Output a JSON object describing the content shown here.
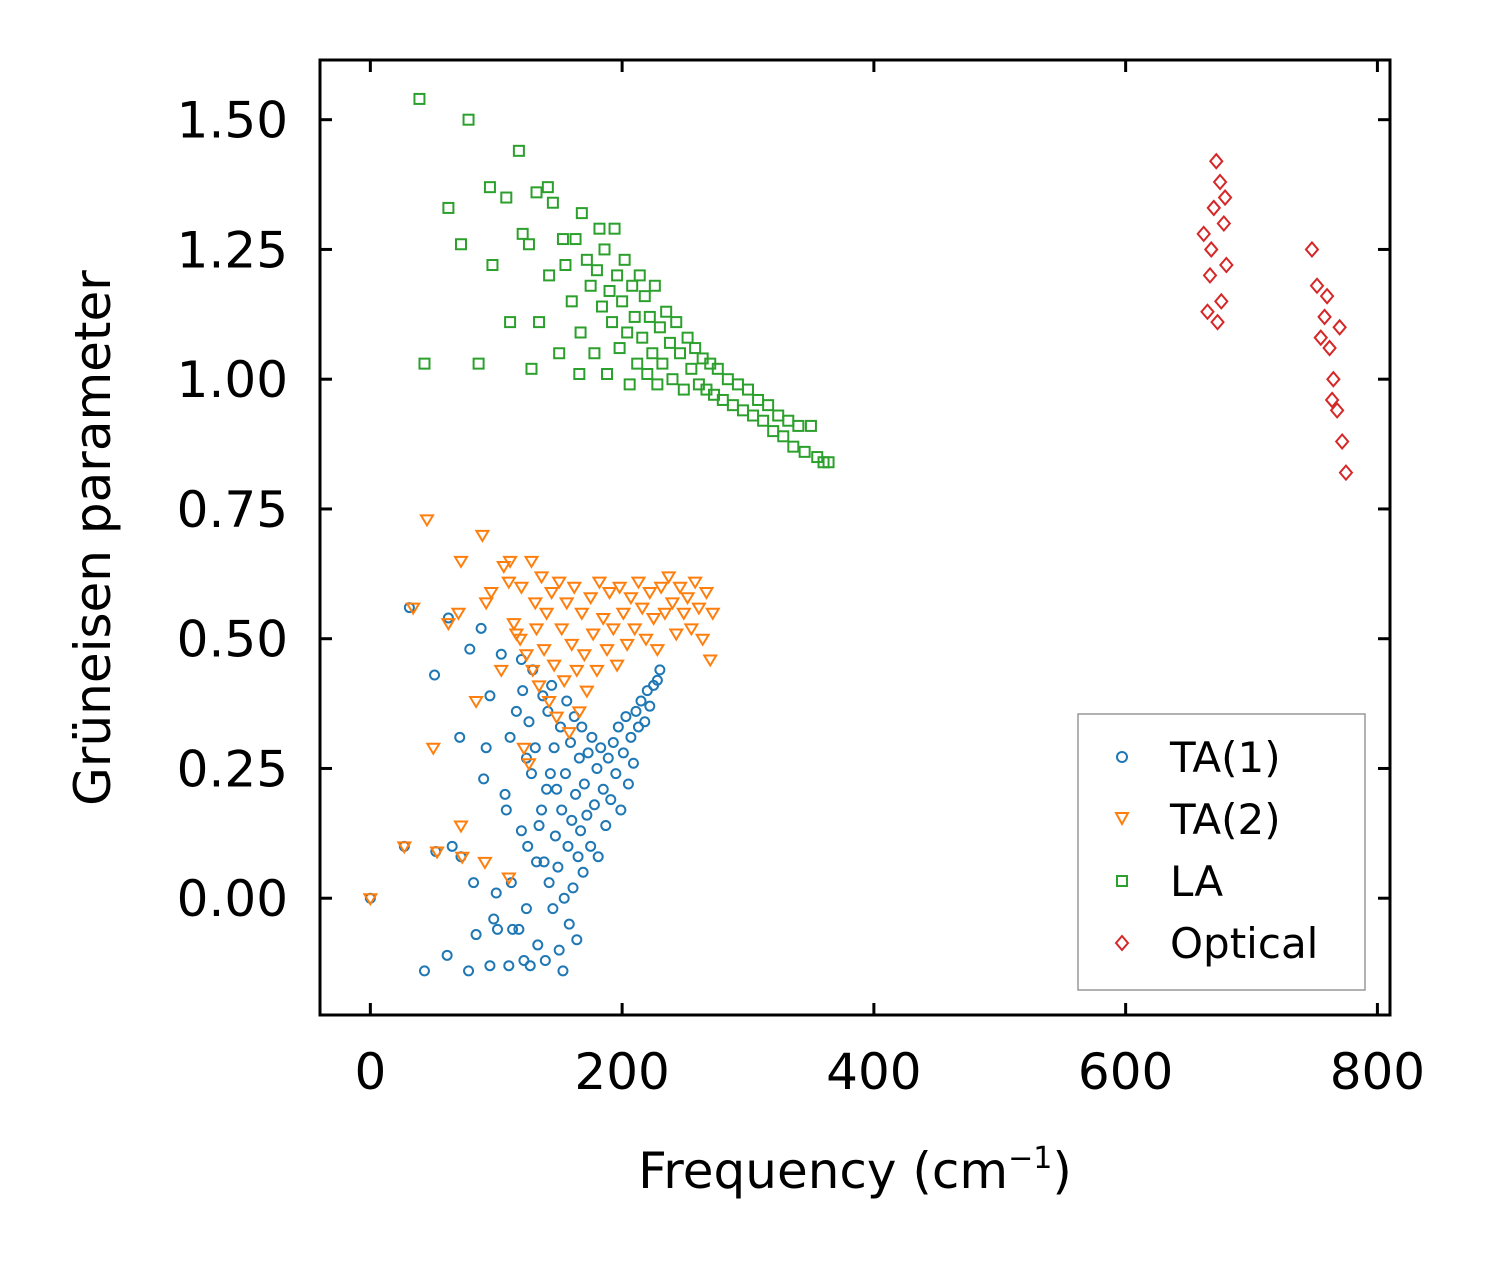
{
  "chart_data": {
    "type": "scatter",
    "title": "",
    "xlabel": "Frequency (cm",
    "xlabel_sup": "−1",
    "xlabel_suffix": ")",
    "ylabel": "Grüneisen parameter",
    "xlim": [
      -40,
      810
    ],
    "ylim": [
      -0.225,
      1.615
    ],
    "xticks": [
      0,
      200,
      400,
      600,
      800
    ],
    "xtick_labels": [
      "0",
      "200",
      "400",
      "600",
      "800"
    ],
    "yticks": [
      0.0,
      0.25,
      0.5,
      0.75,
      1.0,
      1.25,
      1.5
    ],
    "ytick_labels": [
      "0.00",
      "0.25",
      "0.50",
      "0.75",
      "1.00",
      "1.25",
      "1.50"
    ],
    "grid": false,
    "legend_position": "lower-right",
    "series": [
      {
        "name": "TA(1)",
        "marker": "circle",
        "color": "#1f77b4",
        "points": [
          [
            0,
            0
          ],
          [
            27,
            0.1
          ],
          [
            31,
            0.56
          ],
          [
            43,
            -0.14
          ],
          [
            51,
            0.43
          ],
          [
            52,
            0.09
          ],
          [
            61,
            -0.11
          ],
          [
            62,
            0.54
          ],
          [
            65,
            0.1
          ],
          [
            71,
            0.31
          ],
          [
            72,
            0.08
          ],
          [
            78,
            -0.14
          ],
          [
            79,
            0.48
          ],
          [
            82,
            0.03
          ],
          [
            84,
            -0.07
          ],
          [
            88,
            0.52
          ],
          [
            90,
            0.23
          ],
          [
            92,
            0.29
          ],
          [
            95,
            -0.13
          ],
          [
            95,
            0.39
          ],
          [
            98,
            -0.04
          ],
          [
            100,
            0.01
          ],
          [
            101,
            -0.06
          ],
          [
            104,
            0.47
          ],
          [
            107,
            0.2
          ],
          [
            108,
            0.17
          ],
          [
            110,
            -0.13
          ],
          [
            111,
            0.31
          ],
          [
            112,
            0.03
          ],
          [
            113,
            -0.06
          ],
          [
            116,
            0.36
          ],
          [
            118,
            -0.06
          ],
          [
            120,
            0.46
          ],
          [
            120,
            0.13
          ],
          [
            121,
            0.4
          ],
          [
            122,
            -0.12
          ],
          [
            124,
            0.27
          ],
          [
            124,
            -0.02
          ],
          [
            125,
            0.1
          ],
          [
            126,
            0.34
          ],
          [
            127,
            -0.13
          ],
          [
            128,
            0.24
          ],
          [
            129,
            0.44
          ],
          [
            131,
            0.29
          ],
          [
            132,
            0.07
          ],
          [
            133,
            -0.09
          ],
          [
            134,
            0.14
          ],
          [
            136,
            0.17
          ],
          [
            137,
            0.39
          ],
          [
            138,
            0.07
          ],
          [
            139,
            -0.12
          ],
          [
            140,
            0.21
          ],
          [
            141,
            0.36
          ],
          [
            142,
            0.03
          ],
          [
            143,
            0.24
          ],
          [
            144,
            0.41
          ],
          [
            145,
            -0.02
          ],
          [
            146,
            0.29
          ],
          [
            147,
            0.12
          ],
          [
            148,
            0.21
          ],
          [
            149,
            0.06
          ],
          [
            150,
            -0.1
          ],
          [
            151,
            0.33
          ],
          [
            152,
            0.17
          ],
          [
            153,
            -0.14
          ],
          [
            154,
            0.0
          ],
          [
            155,
            0.24
          ],
          [
            156,
            0.38
          ],
          [
            157,
            0.1
          ],
          [
            158,
            -0.05
          ],
          [
            159,
            0.3
          ],
          [
            160,
            0.15
          ],
          [
            161,
            0.02
          ],
          [
            162,
            0.35
          ],
          [
            163,
            0.2
          ],
          [
            164,
            -0.08
          ],
          [
            165,
            0.08
          ],
          [
            166,
            0.27
          ],
          [
            167,
            0.13
          ],
          [
            168,
            0.33
          ],
          [
            169,
            0.05
          ],
          [
            170,
            0.22
          ],
          [
            172,
            0.16
          ],
          [
            173,
            0.28
          ],
          [
            175,
            0.1
          ],
          [
            176,
            0.31
          ],
          [
            178,
            0.18
          ],
          [
            180,
            0.25
          ],
          [
            181,
            0.08
          ],
          [
            183,
            0.29
          ],
          [
            185,
            0.21
          ],
          [
            187,
            0.14
          ],
          [
            189,
            0.27
          ],
          [
            191,
            0.19
          ],
          [
            193,
            0.3
          ],
          [
            195,
            0.24
          ],
          [
            197,
            0.33
          ],
          [
            199,
            0.17
          ],
          [
            201,
            0.28
          ],
          [
            203,
            0.35
          ],
          [
            205,
            0.22
          ],
          [
            207,
            0.31
          ],
          [
            209,
            0.26
          ],
          [
            211,
            0.36
          ],
          [
            213,
            0.33
          ],
          [
            215,
            0.38
          ],
          [
            218,
            0.34
          ],
          [
            220,
            0.4
          ],
          [
            222,
            0.37
          ],
          [
            225,
            0.41
          ],
          [
            228,
            0.42
          ],
          [
            230,
            0.44
          ]
        ]
      },
      {
        "name": "TA(2)",
        "marker": "triangle-down",
        "color": "#ff7f0e",
        "points": [
          [
            0,
            0
          ],
          [
            27,
            0.1
          ],
          [
            34,
            0.56
          ],
          [
            45,
            0.73
          ],
          [
            50,
            0.29
          ],
          [
            53,
            0.09
          ],
          [
            62,
            0.53
          ],
          [
            70,
            0.55
          ],
          [
            72,
            0.14
          ],
          [
            72,
            0.65
          ],
          [
            73,
            0.08
          ],
          [
            84,
            0.38
          ],
          [
            89,
            0.7
          ],
          [
            91,
            0.07
          ],
          [
            92,
            0.57
          ],
          [
            96,
            0.59
          ],
          [
            104,
            0.44
          ],
          [
            106,
            0.64
          ],
          [
            110,
            0.04
          ],
          [
            110,
            0.61
          ],
          [
            111,
            0.65
          ],
          [
            114,
            0.53
          ],
          [
            116,
            0.51
          ],
          [
            119,
            0.5
          ],
          [
            120,
            0.6
          ],
          [
            122,
            0.29
          ],
          [
            124,
            0.47
          ],
          [
            126,
            0.26
          ],
          [
            128,
            0.65
          ],
          [
            129,
            0.44
          ],
          [
            131,
            0.57
          ],
          [
            132,
            0.52
          ],
          [
            134,
            0.41
          ],
          [
            136,
            0.62
          ],
          [
            138,
            0.48
          ],
          [
            140,
            0.55
          ],
          [
            142,
            0.38
          ],
          [
            144,
            0.59
          ],
          [
            146,
            0.45
          ],
          [
            148,
            0.35
          ],
          [
            150,
            0.61
          ],
          [
            152,
            0.52
          ],
          [
            154,
            0.42
          ],
          [
            156,
            0.57
          ],
          [
            158,
            0.32
          ],
          [
            160,
            0.49
          ],
          [
            162,
            0.6
          ],
          [
            164,
            0.44
          ],
          [
            166,
            0.36
          ],
          [
            168,
            0.55
          ],
          [
            170,
            0.47
          ],
          [
            172,
            0.4
          ],
          [
            175,
            0.58
          ],
          [
            177,
            0.51
          ],
          [
            180,
            0.44
          ],
          [
            182,
            0.61
          ],
          [
            185,
            0.54
          ],
          [
            188,
            0.48
          ],
          [
            190,
            0.59
          ],
          [
            193,
            0.52
          ],
          [
            196,
            0.45
          ],
          [
            198,
            0.6
          ],
          [
            201,
            0.55
          ],
          [
            204,
            0.49
          ],
          [
            207,
            0.58
          ],
          [
            210,
            0.52
          ],
          [
            213,
            0.61
          ],
          [
            216,
            0.56
          ],
          [
            219,
            0.5
          ],
          [
            222,
            0.59
          ],
          [
            225,
            0.54
          ],
          [
            228,
            0.48
          ],
          [
            231,
            0.6
          ],
          [
            234,
            0.55
          ],
          [
            237,
            0.62
          ],
          [
            240,
            0.57
          ],
          [
            243,
            0.51
          ],
          [
            246,
            0.6
          ],
          [
            249,
            0.55
          ],
          [
            252,
            0.58
          ],
          [
            255,
            0.52
          ],
          [
            258,
            0.61
          ],
          [
            261,
            0.56
          ],
          [
            264,
            0.5
          ],
          [
            267,
            0.59
          ],
          [
            270,
            0.46
          ],
          [
            272,
            0.55
          ]
        ]
      },
      {
        "name": "LA",
        "marker": "square",
        "color": "#2ca02c",
        "points": [
          [
            39,
            1.54
          ],
          [
            43,
            1.03
          ],
          [
            62,
            1.33
          ],
          [
            72,
            1.26
          ],
          [
            78,
            1.5
          ],
          [
            86,
            1.03
          ],
          [
            95,
            1.37
          ],
          [
            97,
            1.22
          ],
          [
            108,
            1.35
          ],
          [
            111,
            1.11
          ],
          [
            118,
            1.44
          ],
          [
            121,
            1.28
          ],
          [
            126,
            1.26
          ],
          [
            128,
            1.02
          ],
          [
            132,
            1.36
          ],
          [
            134,
            1.11
          ],
          [
            141,
            1.37
          ],
          [
            142,
            1.2
          ],
          [
            145,
            1.34
          ],
          [
            150,
            1.05
          ],
          [
            153,
            1.27
          ],
          [
            155,
            1.22
          ],
          [
            160,
            1.15
          ],
          [
            163,
            1.27
          ],
          [
            166,
            1.01
          ],
          [
            167,
            1.09
          ],
          [
            168,
            1.32
          ],
          [
            172,
            1.23
          ],
          [
            175,
            1.18
          ],
          [
            178,
            1.05
          ],
          [
            180,
            1.21
          ],
          [
            182,
            1.29
          ],
          [
            184,
            1.14
          ],
          [
            186,
            1.25
          ],
          [
            188,
            1.01
          ],
          [
            190,
            1.17
          ],
          [
            192,
            1.11
          ],
          [
            194,
            1.29
          ],
          [
            196,
            1.2
          ],
          [
            198,
            1.06
          ],
          [
            200,
            1.15
          ],
          [
            202,
            1.23
          ],
          [
            204,
            1.09
          ],
          [
            206,
            0.99
          ],
          [
            208,
            1.18
          ],
          [
            210,
            1.12
          ],
          [
            212,
            1.03
          ],
          [
            214,
            1.2
          ],
          [
            216,
            1.08
          ],
          [
            218,
            1.16
          ],
          [
            220,
            1.01
          ],
          [
            222,
            1.12
          ],
          [
            224,
            1.05
          ],
          [
            226,
            1.18
          ],
          [
            228,
            0.99
          ],
          [
            230,
            1.1
          ],
          [
            232,
            1.03
          ],
          [
            235,
            1.13
          ],
          [
            238,
            1.07
          ],
          [
            240,
            1.0
          ],
          [
            243,
            1.11
          ],
          [
            246,
            1.05
          ],
          [
            249,
            0.98
          ],
          [
            252,
            1.08
          ],
          [
            255,
            1.02
          ],
          [
            258,
            1.06
          ],
          [
            261,
            0.99
          ],
          [
            264,
            1.04
          ],
          [
            267,
            0.98
          ],
          [
            270,
            1.03
          ],
          [
            273,
            0.97
          ],
          [
            276,
            1.02
          ],
          [
            280,
            0.96
          ],
          [
            284,
            1.0
          ],
          [
            288,
            0.95
          ],
          [
            292,
            0.99
          ],
          [
            296,
            0.94
          ],
          [
            300,
            0.98
          ],
          [
            304,
            0.93
          ],
          [
            308,
            0.96
          ],
          [
            312,
            0.92
          ],
          [
            316,
            0.95
          ],
          [
            320,
            0.9
          ],
          [
            324,
            0.93
          ],
          [
            328,
            0.89
          ],
          [
            332,
            0.92
          ],
          [
            336,
            0.87
          ],
          [
            340,
            0.91
          ],
          [
            345,
            0.86
          ],
          [
            350,
            0.91
          ],
          [
            355,
            0.85
          ],
          [
            360,
            0.84
          ],
          [
            364,
            0.84
          ]
        ]
      },
      {
        "name": "Optical",
        "marker": "diamond",
        "color": "#d62728",
        "points": [
          [
            665,
            1.13
          ],
          [
            667,
            1.2
          ],
          [
            662,
            1.28
          ],
          [
            670,
            1.33
          ],
          [
            672,
            1.42
          ],
          [
            675,
            1.38
          ],
          [
            678,
            1.3
          ],
          [
            680,
            1.22
          ],
          [
            676,
            1.15
          ],
          [
            668,
            1.25
          ],
          [
            673,
            1.11
          ],
          [
            679,
            1.35
          ],
          [
            748,
            1.25
          ],
          [
            752,
            1.18
          ],
          [
            758,
            1.12
          ],
          [
            762,
            1.06
          ],
          [
            765,
            1.0
          ],
          [
            768,
            0.94
          ],
          [
            772,
            0.88
          ],
          [
            775,
            0.82
          ],
          [
            760,
            1.16
          ],
          [
            755,
            1.08
          ],
          [
            764,
            0.96
          ],
          [
            770,
            1.1
          ]
        ]
      }
    ]
  }
}
